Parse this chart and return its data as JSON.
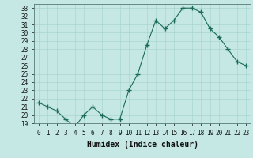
{
  "x": [
    0,
    1,
    2,
    3,
    4,
    5,
    6,
    7,
    8,
    9,
    10,
    11,
    12,
    13,
    14,
    15,
    16,
    17,
    18,
    19,
    20,
    21,
    22,
    23
  ],
  "y": [
    21.5,
    21.0,
    20.5,
    19.5,
    18.5,
    20.0,
    21.0,
    20.0,
    19.5,
    19.5,
    23.0,
    25.0,
    28.5,
    31.5,
    30.5,
    31.5,
    33.0,
    33.0,
    32.5,
    30.5,
    29.5,
    28.0,
    26.5,
    26.0
  ],
  "line_color": "#1a6b5a",
  "marker": "+",
  "marker_size": 4,
  "bg_color": "#c5e8e5",
  "grid_color": "#aad4d0",
  "xlabel": "Humidex (Indice chaleur)",
  "ylim": [
    19,
    33.5
  ],
  "xlim": [
    -0.5,
    23.5
  ],
  "yticks": [
    19,
    20,
    21,
    22,
    23,
    24,
    25,
    26,
    27,
    28,
    29,
    30,
    31,
    32,
    33
  ],
  "xticks": [
    0,
    1,
    2,
    3,
    4,
    5,
    6,
    7,
    8,
    9,
    10,
    11,
    12,
    13,
    14,
    15,
    16,
    17,
    18,
    19,
    20,
    21,
    22,
    23
  ],
  "tick_fontsize": 5.5,
  "xlabel_fontsize": 7,
  "linewidth": 0.8
}
